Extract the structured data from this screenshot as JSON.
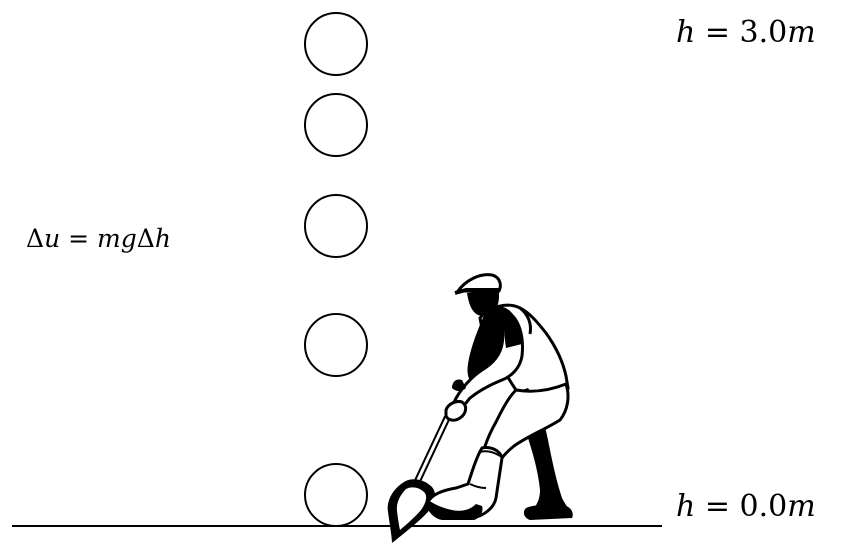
{
  "labels": {
    "top_height": {
      "var": "h",
      "op": " = ",
      "value": "3.0",
      "unit": "m"
    },
    "bottom_height": {
      "var": "h",
      "op": " = ",
      "value": "0.0",
      "unit": "m"
    },
    "energy": {
      "pre": "Δ",
      "u": "u",
      "eq": " = ",
      "m": "m",
      "g": "g",
      "delta": "Δ",
      "h": "h"
    }
  },
  "illustration": "person-digging-with-shovel",
  "colors": {
    "stroke": "#000000",
    "background": "#ffffff"
  }
}
